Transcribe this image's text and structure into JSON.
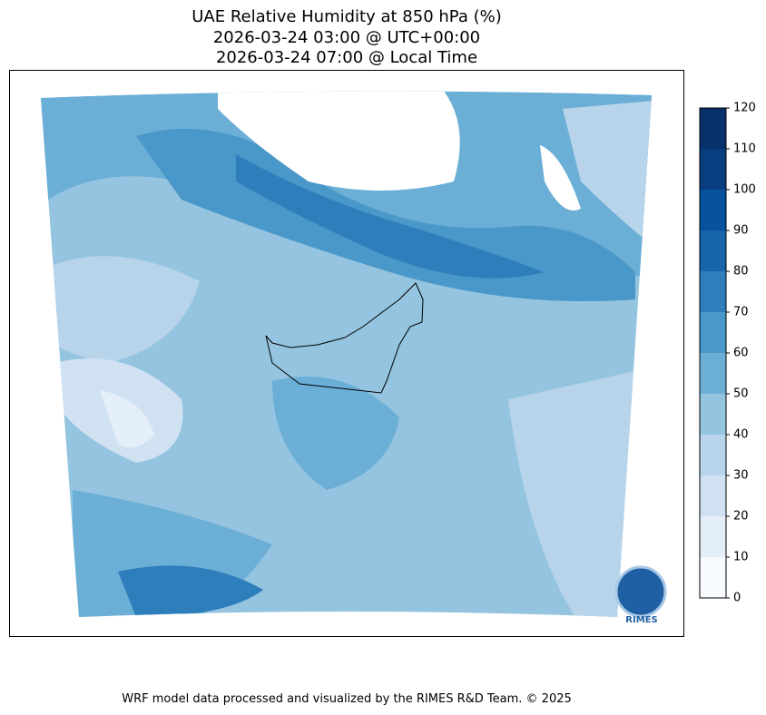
{
  "title": [
    "UAE Relative Humidity at 850 hPa (%)",
    "2026-03-24 03:00 @ UTC+00:00",
    "2026-03-24 07:00 @ Local Time"
  ],
  "colorbar": {
    "ticks": [
      0,
      10,
      20,
      30,
      40,
      50,
      60,
      70,
      80,
      90,
      100,
      110,
      120
    ],
    "colors": [
      "#f7fbff",
      "#e3eef8",
      "#d0e1f2",
      "#b7d4ea",
      "#94c4df",
      "#6baed6",
      "#4a98c9",
      "#2e7ebc",
      "#1764ab",
      "#08519c",
      "#083d7f",
      "#08306b"
    ]
  },
  "logo": "RIMES",
  "footer": "WRF model data processed and visualized by the RIMES R&D Team. © 2025"
}
